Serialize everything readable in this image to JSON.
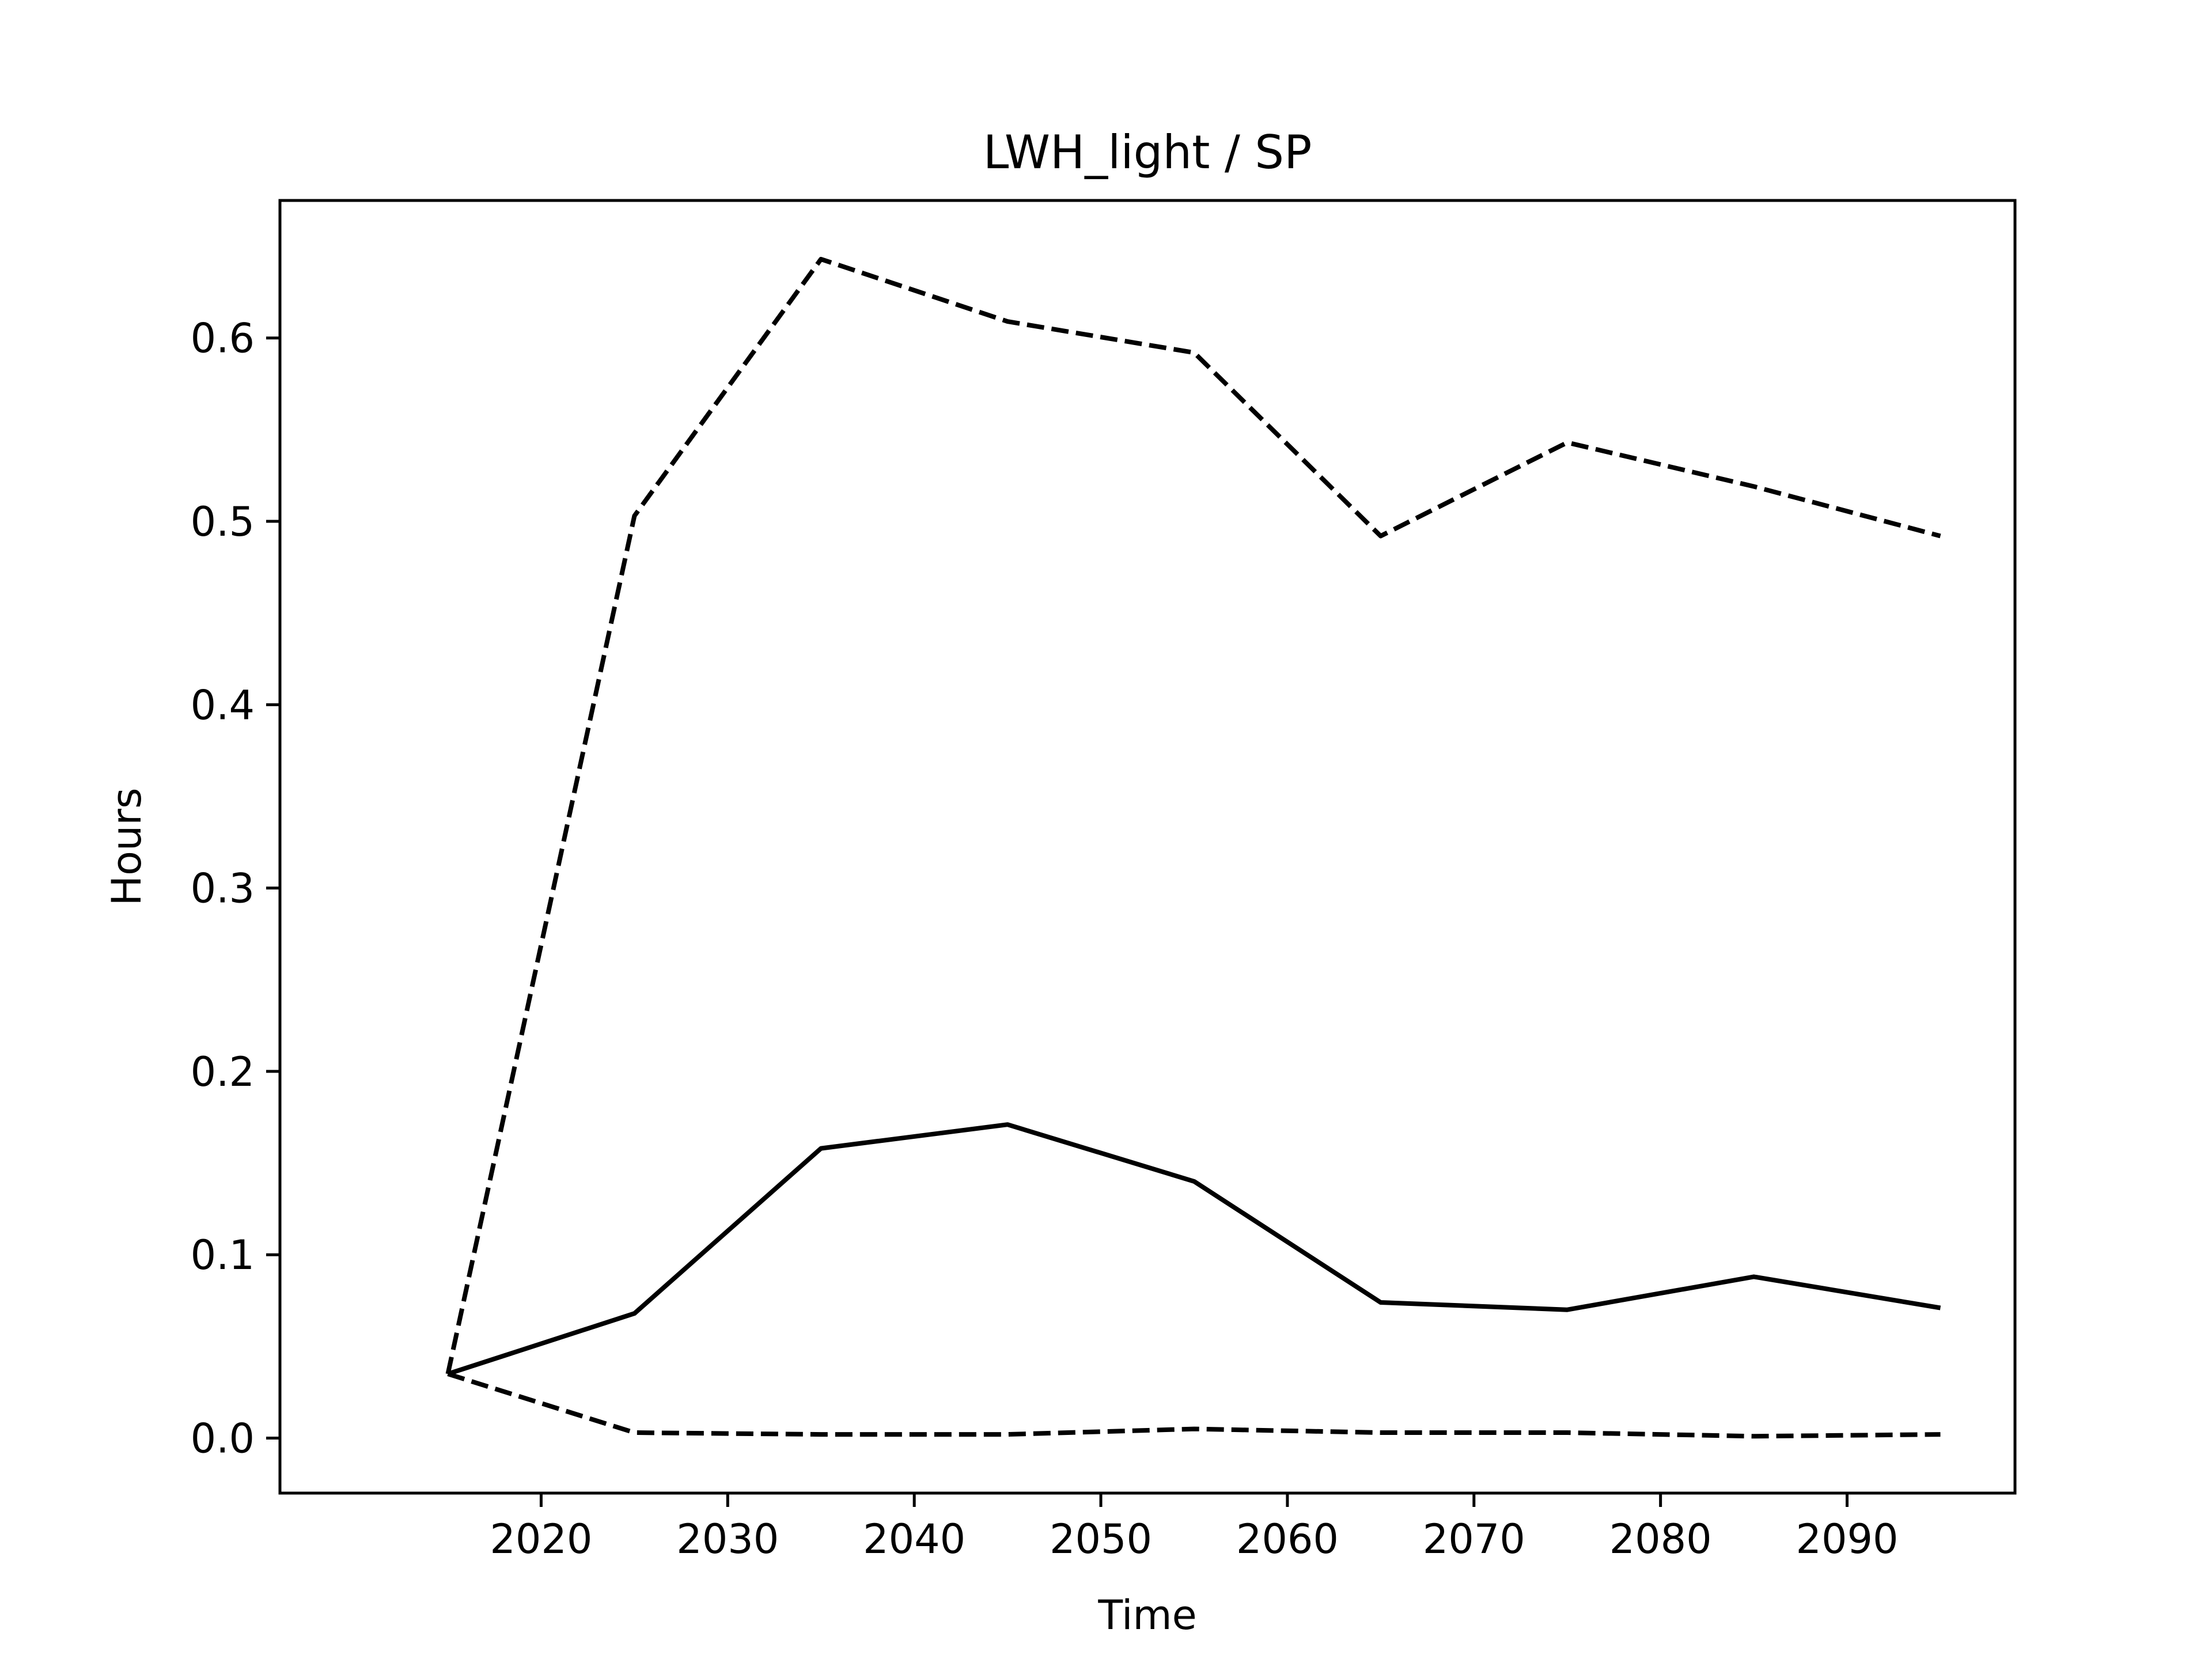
{
  "chart_data": {
    "type": "line",
    "title": "LWH_light / SP",
    "xlabel": "Time",
    "ylabel": "Hours",
    "x": [
      2015,
      2025,
      2035,
      2045,
      2055,
      2065,
      2075,
      2085,
      2095
    ],
    "xlim": [
      2006,
      2099
    ],
    "ylim": [
      -0.03,
      0.675
    ],
    "xticks": [
      2020,
      2030,
      2040,
      2050,
      2060,
      2070,
      2080,
      2090
    ],
    "yticks": [
      0.0,
      0.1,
      0.2,
      0.3,
      0.4,
      0.5,
      0.6
    ],
    "ytick_labels": [
      "0.0",
      "0.1",
      "0.2",
      "0.3",
      "0.4",
      "0.5",
      "0.6"
    ],
    "grid": false,
    "series": [
      {
        "style": "solid",
        "color": "#000000",
        "values": [
          0.035,
          0.068,
          0.158,
          0.171,
          0.14,
          0.074,
          0.07,
          0.088,
          0.071
        ]
      },
      {
        "style": "dashed",
        "color": "#000000",
        "values": [
          0.035,
          0.503,
          0.643,
          0.609,
          0.592,
          0.492,
          0.543,
          0.519,
          0.492
        ]
      },
      {
        "style": "dashed",
        "color": "#000000",
        "values": [
          0.035,
          0.003,
          0.002,
          0.002,
          0.005,
          0.003,
          0.003,
          0.001,
          0.002
        ]
      }
    ]
  }
}
